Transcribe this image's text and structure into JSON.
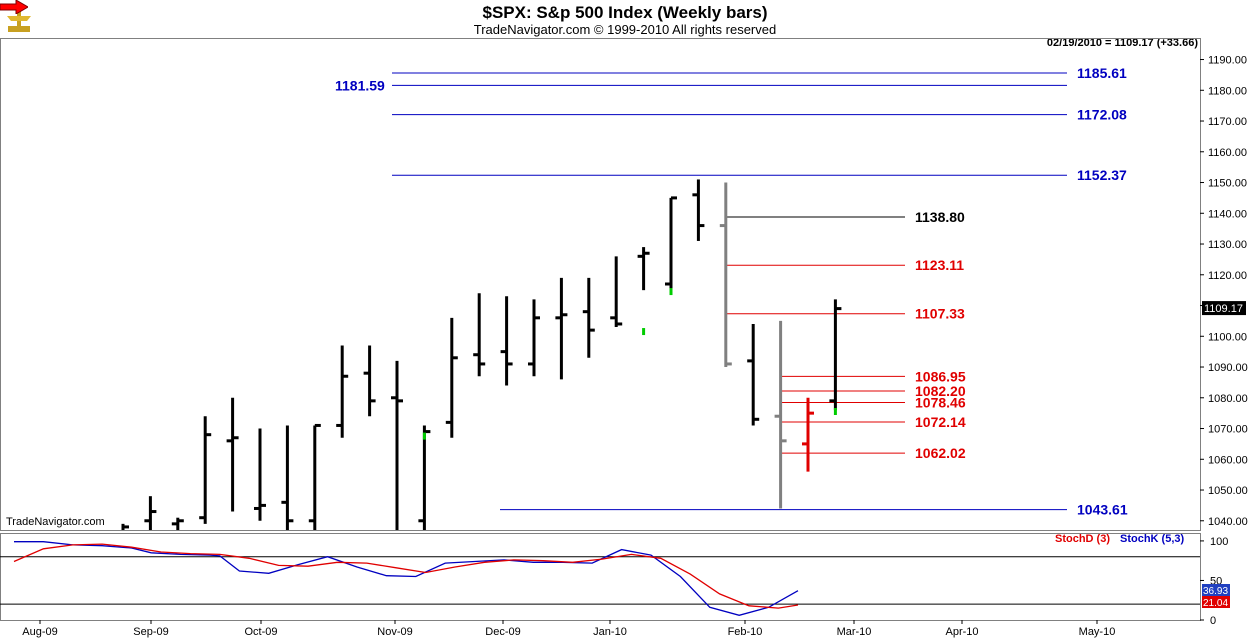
{
  "header": {
    "title": "$SPX:  S&p 500 Index  (Weekly bars)",
    "subtitle": "TradeNavigator.com © 1999-2010 All rights reserved",
    "quote": "02/19/2010 = 1109.17 (+33.66)",
    "watermark": "TradeNavigator.com",
    "last_price_tag": "1109.17"
  },
  "colors": {
    "bar_black": "#000000",
    "bar_gray": "#808080",
    "bar_red": "#ff0000",
    "bar_green": "#00cc00",
    "level_blue": "#0000c0",
    "level_red": "#e00000",
    "level_black": "#000000",
    "stoch_d": "#e00000",
    "stoch_k": "#0000c0"
  },
  "chart_data": [
    {
      "type": "ohlc",
      "title": "$SPX:  S&p 500 Index  (Weekly bars)",
      "ylim": [
        1037,
        1197
      ],
      "yticks": [
        1040,
        1050,
        1060,
        1070,
        1080,
        1090,
        1100,
        1110,
        1120,
        1130,
        1140,
        1150,
        1160,
        1170,
        1180,
        1190
      ],
      "ytick_labels": [
        "1040.00",
        "1050.00",
        "1060.00",
        "1070.00",
        "1080.00",
        "1090.00",
        "1100.00",
        "1110.00",
        "1120.00",
        "1130.00",
        "1140.00",
        "1150.00",
        "1160.00",
        "1170.00",
        "1180.00",
        "1190.00"
      ],
      "x_labels": [
        "Aug-09",
        "Sep-09",
        "Oct-09",
        "Nov-09",
        "Dec-09",
        "Jan-10",
        "Feb-10",
        "Mar-10",
        "Apr-10",
        "May-10"
      ],
      "bars": [
        {
          "i": 0,
          "o": 1037,
          "h": 1039,
          "l": 1037,
          "c": 1038,
          "color": "black"
        },
        {
          "i": 1,
          "o": 1040,
          "h": 1048,
          "l": 1037,
          "c": 1043,
          "color": "black"
        },
        {
          "i": 2,
          "o": 1039,
          "h": 1041,
          "l": 1037,
          "c": 1040,
          "color": "black"
        },
        {
          "i": 3,
          "o": 1041,
          "h": 1074,
          "l": 1039,
          "c": 1068,
          "color": "black"
        },
        {
          "i": 4,
          "o": 1066,
          "h": 1080,
          "l": 1043,
          "c": 1067,
          "color": "black"
        },
        {
          "i": 5,
          "o": 1044,
          "h": 1070,
          "l": 1040,
          "c": 1045,
          "color": "black"
        },
        {
          "i": 6,
          "o": 1046,
          "h": 1071,
          "l": 1037,
          "c": 1040,
          "color": "black"
        },
        {
          "i": 7,
          "o": 1040,
          "h": 1071,
          "l": 1037,
          "c": 1071,
          "color": "black"
        },
        {
          "i": 8,
          "o": 1071,
          "h": 1097,
          "l": 1067,
          "c": 1087,
          "color": "black"
        },
        {
          "i": 9,
          "o": 1088,
          "h": 1097,
          "l": 1074,
          "c": 1079,
          "color": "black"
        },
        {
          "i": 10,
          "o": 1080,
          "h": 1092,
          "l": 1037,
          "c": 1079,
          "color": "black"
        },
        {
          "i": 11,
          "o": 1040,
          "h": 1071,
          "l": 1037,
          "c": 1069,
          "color": "black"
        },
        {
          "i": 12,
          "o": 1072,
          "h": 1106,
          "l": 1067,
          "c": 1093,
          "color": "black"
        },
        {
          "i": 13,
          "o": 1094,
          "h": 1114,
          "l": 1087,
          "c": 1091,
          "color": "black"
        },
        {
          "i": 14,
          "o": 1095,
          "h": 1113,
          "l": 1084,
          "c": 1091,
          "color": "black"
        },
        {
          "i": 15,
          "o": 1091,
          "h": 1112,
          "l": 1087,
          "c": 1106,
          "color": "black"
        },
        {
          "i": 16,
          "o": 1106,
          "h": 1119,
          "l": 1086,
          "c": 1107,
          "color": "black"
        },
        {
          "i": 17,
          "o": 1108,
          "h": 1119,
          "l": 1093,
          "c": 1102,
          "color": "black"
        },
        {
          "i": 18,
          "o": 1106,
          "h": 1126,
          "l": 1103,
          "c": 1104,
          "color": "black"
        },
        {
          "i": 19,
          "o": 1126,
          "h": 1129,
          "l": 1115,
          "c": 1127,
          "color": "black"
        },
        {
          "i": 20,
          "o": 1117,
          "h": 1145,
          "l": 1115,
          "c": 1145,
          "color": "black"
        },
        {
          "i": 21,
          "o": 1146,
          "h": 1151,
          "l": 1131,
          "c": 1136,
          "color": "black"
        },
        {
          "i": 22,
          "o": 1136,
          "h": 1150,
          "l": 1090,
          "c": 1091,
          "color": "gray"
        },
        {
          "i": 23,
          "o": 1092,
          "h": 1104,
          "l": 1071,
          "c": 1073,
          "color": "black"
        },
        {
          "i": 24,
          "o": 1074,
          "h": 1105,
          "l": 1044,
          "c": 1066,
          "color": "gray"
        },
        {
          "i": 25,
          "o": 1065,
          "h": 1080,
          "l": 1056,
          "c": 1075,
          "color": "red"
        },
        {
          "i": 26,
          "o": 1079,
          "h": 1112,
          "l": 1076,
          "c": 1109,
          "color": "black"
        }
      ],
      "green_marks": [
        {
          "i": 11,
          "v": 1069
        },
        {
          "i": 19,
          "v": 1103
        },
        {
          "i": 20,
          "v": 1116
        },
        {
          "i": 26,
          "v": 1077
        }
      ],
      "levels": [
        {
          "value": 1185.61,
          "label": "1185.61",
          "color": "blue",
          "start_i": 12,
          "end_i": 40
        },
        {
          "value": 1181.59,
          "label": "1181.59",
          "color": "blue",
          "start_i": 12,
          "end_i": 40,
          "left_label": true
        },
        {
          "value": 1172.08,
          "label": "1172.08",
          "color": "blue",
          "start_i": 12,
          "end_i": 40
        },
        {
          "value": 1152.37,
          "label": "1152.37",
          "color": "blue",
          "start_i": 12,
          "end_i": 40
        },
        {
          "value": 1138.8,
          "label": "1138.80",
          "color": "black",
          "start_i": 22,
          "end_i": 31
        },
        {
          "value": 1123.11,
          "label": "1123.11",
          "color": "red",
          "start_i": 22,
          "end_i": 31
        },
        {
          "value": 1107.33,
          "label": "1107.33",
          "color": "red",
          "start_i": 22,
          "end_i": 31
        },
        {
          "value": 1086.95,
          "label": "1086.95",
          "color": "red",
          "start_i": 24,
          "end_i": 31
        },
        {
          "value": 1082.2,
          "label": "1082.20",
          "color": "red",
          "start_i": 24,
          "end_i": 31
        },
        {
          "value": 1078.46,
          "label": "1078.46",
          "color": "red",
          "start_i": 24,
          "end_i": 31
        },
        {
          "value": 1072.14,
          "label": "1072.14",
          "color": "red",
          "start_i": 24,
          "end_i": 31
        },
        {
          "value": 1062.02,
          "label": "1062.02",
          "color": "red",
          "start_i": 24,
          "end_i": 31
        },
        {
          "value": 1043.61,
          "label": "1043.61",
          "color": "blue",
          "start_i": 16,
          "end_i": 40
        }
      ]
    },
    {
      "type": "line",
      "legend": [
        "StochD (3)",
        "StochK (5,3)"
      ],
      "ylim": [
        0,
        110
      ],
      "yticks": [
        0,
        50,
        100
      ],
      "ytick_labels": [
        "0",
        "50",
        "100"
      ],
      "hlines": [
        80,
        20
      ],
      "last_values": {
        "StochK (5,3)": "36.93",
        "StochD (3)": "21.04"
      },
      "series": [
        {
          "name": "StochK (5,3)",
          "color": "stoch_k",
          "values": [
            {
              "x": 0,
              "y": 99
            },
            {
              "x": 3,
              "y": 99
            },
            {
              "x": 6,
              "y": 95
            },
            {
              "x": 9,
              "y": 94
            },
            {
              "x": 12,
              "y": 91
            },
            {
              "x": 14,
              "y": 85
            },
            {
              "x": 17,
              "y": 83
            },
            {
              "x": 20,
              "y": 82
            },
            {
              "x": 21,
              "y": 81
            },
            {
              "x": 23,
              "y": 62
            },
            {
              "x": 26,
              "y": 59
            },
            {
              "x": 29,
              "y": 70
            },
            {
              "x": 32,
              "y": 80
            },
            {
              "x": 35,
              "y": 67
            },
            {
              "x": 38,
              "y": 56
            },
            {
              "x": 41,
              "y": 55
            },
            {
              "x": 44,
              "y": 72
            },
            {
              "x": 47,
              "y": 74
            },
            {
              "x": 50,
              "y": 76
            },
            {
              "x": 53,
              "y": 73
            },
            {
              "x": 56,
              "y": 73
            },
            {
              "x": 59,
              "y": 72
            },
            {
              "x": 62,
              "y": 89
            },
            {
              "x": 65,
              "y": 82
            },
            {
              "x": 68,
              "y": 55
            },
            {
              "x": 71,
              "y": 16
            },
            {
              "x": 74,
              "y": 6
            },
            {
              "x": 77,
              "y": 16
            },
            {
              "x": 80,
              "y": 37
            }
          ]
        },
        {
          "name": "StochD (3)",
          "color": "stoch_d",
          "values": [
            {
              "x": 0,
              "y": 74
            },
            {
              "x": 3,
              "y": 90
            },
            {
              "x": 6,
              "y": 95
            },
            {
              "x": 9,
              "y": 96
            },
            {
              "x": 12,
              "y": 92
            },
            {
              "x": 15,
              "y": 86
            },
            {
              "x": 18,
              "y": 84
            },
            {
              "x": 21,
              "y": 83
            },
            {
              "x": 24,
              "y": 78
            },
            {
              "x": 27,
              "y": 69
            },
            {
              "x": 30,
              "y": 68
            },
            {
              "x": 33,
              "y": 73
            },
            {
              "x": 36,
              "y": 72
            },
            {
              "x": 39,
              "y": 66
            },
            {
              "x": 42,
              "y": 60
            },
            {
              "x": 45,
              "y": 67
            },
            {
              "x": 48,
              "y": 73
            },
            {
              "x": 51,
              "y": 76
            },
            {
              "x": 54,
              "y": 75
            },
            {
              "x": 57,
              "y": 73
            },
            {
              "x": 60,
              "y": 77
            },
            {
              "x": 63,
              "y": 83
            },
            {
              "x": 66,
              "y": 78
            },
            {
              "x": 69,
              "y": 58
            },
            {
              "x": 72,
              "y": 33
            },
            {
              "x": 75,
              "y": 18
            },
            {
              "x": 78,
              "y": 15
            },
            {
              "x": 80,
              "y": 19
            }
          ]
        }
      ]
    }
  ]
}
